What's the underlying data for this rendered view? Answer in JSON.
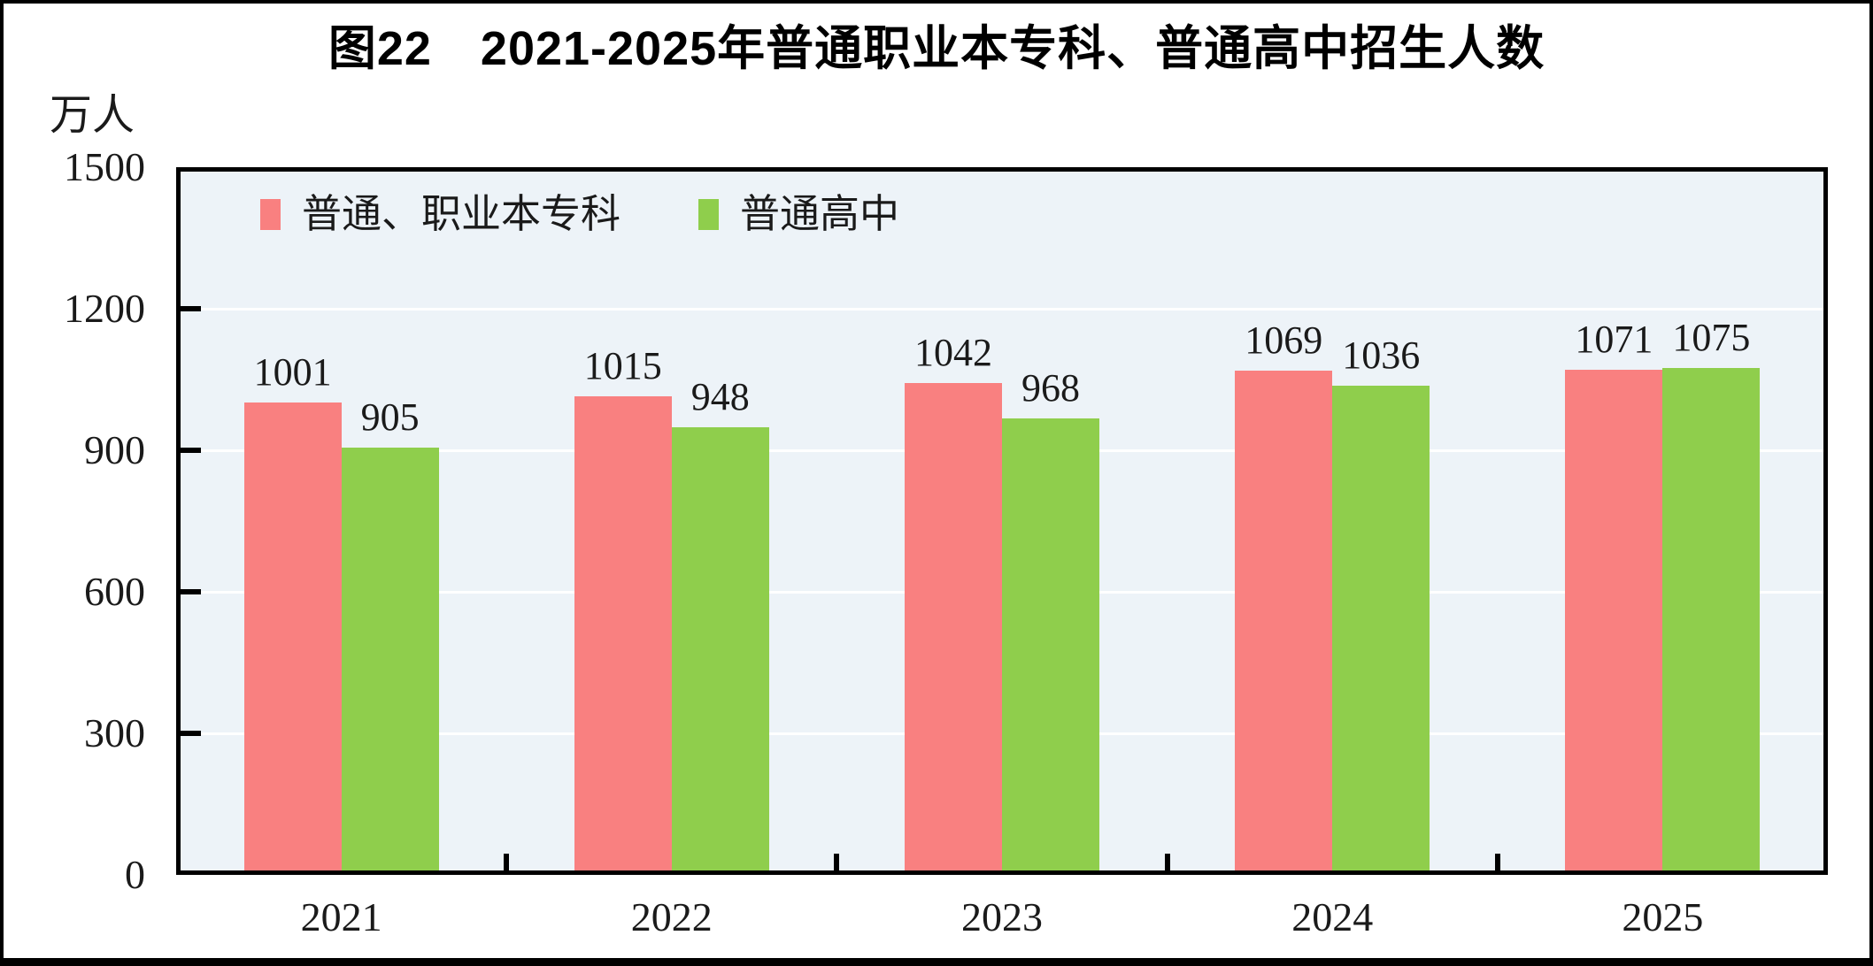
{
  "figure": {
    "title": "图22　2021-2025年普通职业本专科、普通高中招生人数",
    "unit_label": "万人"
  },
  "chart_data": {
    "type": "bar",
    "title": "图22　2021-2025年普通职业本专科、普通高中招生人数",
    "ylabel": "万人",
    "xlabel": "",
    "categories": [
      "2021",
      "2022",
      "2023",
      "2024",
      "2025"
    ],
    "series": [
      {
        "name": "普通、职业本专科",
        "color": "#F98080",
        "values": [
          1001,
          1015,
          1042,
          1069,
          1071
        ]
      },
      {
        "name": "普通高中",
        "color": "#8FCE4C",
        "values": [
          905,
          948,
          968,
          1036,
          1075
        ]
      }
    ],
    "ylim": [
      0,
      1500
    ],
    "yticks": [
      0,
      300,
      600,
      900,
      1200,
      1500
    ],
    "gridline_values": [
      300,
      600,
      900,
      1200
    ],
    "grid": true,
    "legend_position": "top-left-inside",
    "colors": {
      "plot_background": "#EDF3F8",
      "gridline": "#FFFFFF",
      "axis_border": "#000000",
      "text": "#1A1A1A"
    }
  }
}
